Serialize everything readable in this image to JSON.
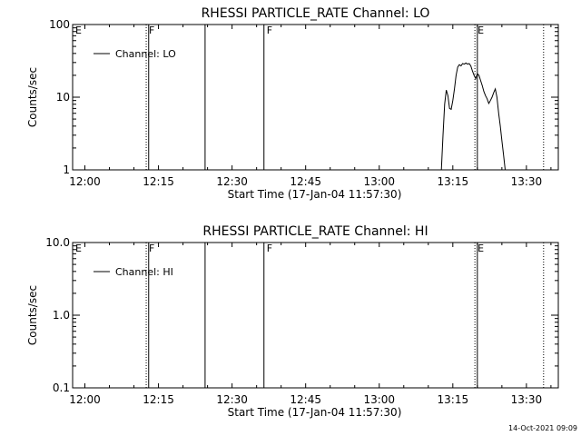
{
  "footer": {
    "timestamp": "14-Oct-2021 09:09"
  },
  "chart_data": [
    {
      "type": "line",
      "title": "RHESSI PARTICLE_RATE Channel: LO",
      "xlabel": "Start Time (17-Jan-04 11:57:30)",
      "ylabel": "Counts/sec",
      "y_scale": "log",
      "ylim": [
        1,
        100
      ],
      "xlim": [
        "11:57:30",
        "13:36:30"
      ],
      "x_ticks": [
        "12:00",
        "12:15",
        "12:30",
        "12:45",
        "13:00",
        "13:15",
        "13:30"
      ],
      "y_ticks": [
        "1",
        "10",
        "100"
      ],
      "legend": {
        "position": "top-left",
        "entries": [
          "Channel: LO"
        ]
      },
      "grid": false,
      "markers": [
        {
          "time": "11:57:30",
          "label": "E",
          "style": "dotted"
        },
        {
          "time": "12:12:30",
          "label": "F",
          "style": "dotted"
        },
        {
          "time": "12:13:00",
          "label": "",
          "style": "solid"
        },
        {
          "time": "12:24:30",
          "label": "",
          "style": "solid"
        },
        {
          "time": "12:36:30",
          "label": "F",
          "style": "solid"
        },
        {
          "time": "13:19:30",
          "label": "E",
          "style": "dotted"
        },
        {
          "time": "13:20:00",
          "label": "",
          "style": "solid"
        },
        {
          "time": "13:33:30",
          "label": "",
          "style": "dotted"
        }
      ],
      "series": [
        {
          "name": "Channel: LO",
          "x": [
            "13:12:40",
            "13:13:00",
            "13:13:20",
            "13:13:40",
            "13:14:00",
            "13:14:20",
            "13:14:40",
            "13:15:00",
            "13:15:20",
            "13:15:40",
            "13:16:00",
            "13:16:20",
            "13:16:40",
            "13:17:00",
            "13:17:20",
            "13:17:40",
            "13:18:00",
            "13:18:20",
            "13:18:40",
            "13:19:00",
            "13:19:20",
            "13:19:40",
            "13:20:00",
            "13:20:20",
            "13:20:40",
            "13:21:00",
            "13:21:20",
            "13:21:40",
            "13:22:00",
            "13:22:20",
            "13:22:40",
            "13:23:00",
            "13:23:20",
            "13:23:40",
            "13:24:00",
            "13:24:20",
            "13:24:40",
            "13:25:00",
            "13:25:20",
            "13:25:40",
            "13:26:00",
            "13:26:20"
          ],
          "values": [
            1.0,
            3.0,
            8.0,
            12.5,
            10.5,
            7.0,
            6.8,
            9.0,
            13.0,
            20.0,
            26.0,
            28.0,
            27.0,
            29.0,
            28.5,
            29.5,
            28.5,
            29.0,
            27.0,
            23.0,
            20.0,
            18.0,
            21.0,
            20.0,
            17.0,
            14.5,
            12.0,
            10.5,
            9.5,
            8.2,
            9.0,
            10.0,
            11.5,
            13.0,
            10.0,
            6.0,
            4.0,
            2.5,
            1.6,
            1.0,
            1.0,
            1.0
          ]
        }
      ]
    },
    {
      "type": "line",
      "title": "RHESSI PARTICLE_RATE Channel: HI",
      "xlabel": "Start Time (17-Jan-04 11:57:30)",
      "ylabel": "Counts/sec",
      "y_scale": "log",
      "ylim": [
        0.1,
        10
      ],
      "xlim": [
        "11:57:30",
        "13:36:30"
      ],
      "x_ticks": [
        "12:00",
        "12:15",
        "12:30",
        "12:45",
        "13:00",
        "13:15",
        "13:30"
      ],
      "y_ticks": [
        "0.1",
        "1.0",
        "10.0"
      ],
      "legend": {
        "position": "top-left",
        "entries": [
          "Channel: HI"
        ]
      },
      "grid": false,
      "markers": [
        {
          "time": "11:57:30",
          "label": "E",
          "style": "dotted"
        },
        {
          "time": "12:12:30",
          "label": "F",
          "style": "dotted"
        },
        {
          "time": "12:13:00",
          "label": "",
          "style": "solid"
        },
        {
          "time": "12:24:30",
          "label": "",
          "style": "solid"
        },
        {
          "time": "12:36:30",
          "label": "F",
          "style": "solid"
        },
        {
          "time": "13:19:30",
          "label": "E",
          "style": "dotted"
        },
        {
          "time": "13:20:00",
          "label": "",
          "style": "solid"
        },
        {
          "time": "13:33:30",
          "label": "",
          "style": "dotted"
        }
      ],
      "series": [
        {
          "name": "Channel: HI",
          "x": [],
          "values": []
        }
      ]
    }
  ]
}
